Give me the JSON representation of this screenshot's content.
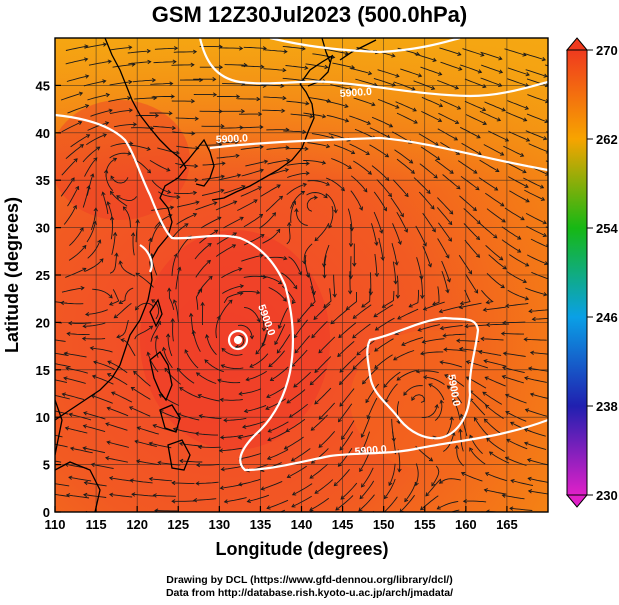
{
  "title": "GSM 12Z30Jul2023 (500.0hPa)",
  "axes": {
    "xlabel": "Longitude (degrees)",
    "ylabel": "Latitude (degrees)",
    "xlim": [
      110,
      170
    ],
    "ylim": [
      0,
      50
    ],
    "xticks": [
      "110",
      "115",
      "120",
      "125",
      "130",
      "135",
      "140",
      "145",
      "150",
      "155",
      "160",
      "165"
    ],
    "yticks": [
      "0",
      "5",
      "10",
      "15",
      "20",
      "25",
      "30",
      "35",
      "40",
      "45"
    ]
  },
  "colorbar": {
    "labels": [
      "270",
      "262",
      "254",
      "246",
      "238",
      "230"
    ],
    "colors": [
      "#f03a1e",
      "#f7a400",
      "#16b814",
      "#0aa0e6",
      "#2020b0",
      "#e020c8"
    ]
  },
  "contours": [
    {
      "label": "5900.0"
    },
    {
      "label": "5900.0"
    },
    {
      "label": "5900.0"
    },
    {
      "label": "5900.0"
    },
    {
      "label": "5900.0"
    }
  ],
  "credits": {
    "line1": "Drawing by DCL (https://www.gfd-dennou.org/library/dcl/)",
    "line2": "Data from http://database.rish.kyoto-u.ac.jp/arch/jmadata/"
  }
}
